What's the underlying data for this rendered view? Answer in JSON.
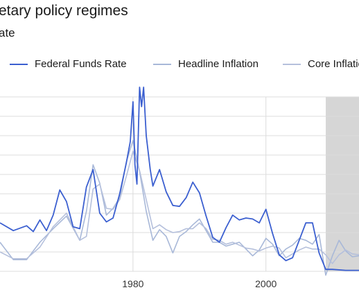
{
  "chart_data": {
    "type": "line",
    "title": "etary policy regimes",
    "subtitle": "ate",
    "xlabel": "",
    "ylabel": "",
    "x_ticks": [
      1980,
      2000
    ],
    "xlim": [
      1960,
      2014
    ],
    "ylim": [
      0,
      18
    ],
    "grid": true,
    "legend_position": "top",
    "shaded_region": {
      "x_start": 2009,
      "x_end": 2014,
      "color": "#d6d6d6"
    },
    "series": [
      {
        "name": "Federal Funds Rate",
        "color": "#3b5fd0",
        "points": [
          [
            1960,
            5.0
          ],
          [
            1962,
            4.2
          ],
          [
            1964,
            4.7
          ],
          [
            1965,
            4.1
          ],
          [
            1966,
            5.3
          ],
          [
            1967,
            4.2
          ],
          [
            1968,
            5.8
          ],
          [
            1969,
            8.4
          ],
          [
            1970,
            7.2
          ],
          [
            1971,
            4.6
          ],
          [
            1972,
            4.4
          ],
          [
            1973,
            8.7
          ],
          [
            1974,
            10.5
          ],
          [
            1975,
            6.0
          ],
          [
            1976,
            5.1
          ],
          [
            1977,
            5.5
          ],
          [
            1978,
            8.0
          ],
          [
            1979,
            11.2
          ],
          [
            1979.6,
            13.4
          ],
          [
            1980,
            17.5
          ],
          [
            1980.3,
            11.0
          ],
          [
            1980.6,
            9.0
          ],
          [
            1981,
            19.0
          ],
          [
            1981.3,
            17.0
          ],
          [
            1981.6,
            19.0
          ],
          [
            1982,
            14.0
          ],
          [
            1982.6,
            10.5
          ],
          [
            1983,
            8.8
          ],
          [
            1984,
            10.5
          ],
          [
            1985,
            8.2
          ],
          [
            1986,
            6.8
          ],
          [
            1987,
            6.7
          ],
          [
            1988,
            7.6
          ],
          [
            1989,
            9.2
          ],
          [
            1990,
            8.1
          ],
          [
            1991,
            5.7
          ],
          [
            1992,
            3.5
          ],
          [
            1993,
            3.0
          ],
          [
            1994,
            4.5
          ],
          [
            1995,
            5.8
          ],
          [
            1996,
            5.3
          ],
          [
            1997,
            5.5
          ],
          [
            1998,
            5.4
          ],
          [
            1999,
            5.0
          ],
          [
            2000,
            6.4
          ],
          [
            2001,
            3.9
          ],
          [
            2002,
            1.7
          ],
          [
            2003,
            1.1
          ],
          [
            2004,
            1.4
          ],
          [
            2005,
            3.2
          ],
          [
            2006,
            5.0
          ],
          [
            2007,
            5.0
          ],
          [
            2008,
            1.9
          ],
          [
            2009,
            0.2
          ],
          [
            2010,
            0.2
          ],
          [
            2012,
            0.1
          ],
          [
            2014,
            0.1
          ]
        ]
      },
      {
        "name": "Headline Inflation",
        "color": "#a8b8d8",
        "points": [
          [
            1960,
            3.0
          ],
          [
            1962,
            1.2
          ],
          [
            1964,
            1.2
          ],
          [
            1966,
            3.0
          ],
          [
            1968,
            4.4
          ],
          [
            1970,
            5.7
          ],
          [
            1972,
            3.2
          ],
          [
            1973,
            6.2
          ],
          [
            1974,
            11.0
          ],
          [
            1975,
            9.1
          ],
          [
            1976,
            5.8
          ],
          [
            1977,
            6.5
          ],
          [
            1978,
            7.6
          ],
          [
            1979,
            11.3
          ],
          [
            1980,
            13.5
          ],
          [
            1981,
            10.3
          ],
          [
            1982,
            6.2
          ],
          [
            1983,
            3.2
          ],
          [
            1984,
            4.3
          ],
          [
            1985,
            3.6
          ],
          [
            1986,
            1.9
          ],
          [
            1987,
            3.6
          ],
          [
            1988,
            4.1
          ],
          [
            1989,
            4.8
          ],
          [
            1990,
            5.4
          ],
          [
            1991,
            4.2
          ],
          [
            1992,
            3.0
          ],
          [
            1993,
            3.0
          ],
          [
            1994,
            2.6
          ],
          [
            1995,
            2.8
          ],
          [
            1996,
            3.0
          ],
          [
            1997,
            2.3
          ],
          [
            1998,
            1.6
          ],
          [
            1999,
            2.2
          ],
          [
            2000,
            3.4
          ],
          [
            2001,
            2.8
          ],
          [
            2002,
            1.6
          ],
          [
            2003,
            2.3
          ],
          [
            2004,
            2.7
          ],
          [
            2005,
            3.4
          ],
          [
            2006,
            3.2
          ],
          [
            2007,
            2.8
          ],
          [
            2008,
            3.8
          ],
          [
            2009,
            -0.4
          ],
          [
            2010,
            1.6
          ],
          [
            2011,
            3.2
          ],
          [
            2012,
            2.1
          ],
          [
            2013,
            1.5
          ],
          [
            2014,
            1.6
          ]
        ]
      },
      {
        "name": "Core Inflation",
        "color": "#b5c0dc",
        "points": [
          [
            1960,
            2.0
          ],
          [
            1962,
            1.3
          ],
          [
            1964,
            1.3
          ],
          [
            1966,
            2.5
          ],
          [
            1968,
            4.6
          ],
          [
            1970,
            6.0
          ],
          [
            1972,
            3.2
          ],
          [
            1973,
            3.6
          ],
          [
            1974,
            8.5
          ],
          [
            1975,
            9.0
          ],
          [
            1976,
            6.5
          ],
          [
            1977,
            6.4
          ],
          [
            1978,
            7.4
          ],
          [
            1979,
            9.8
          ],
          [
            1980,
            12.4
          ],
          [
            1981,
            10.4
          ],
          [
            1982,
            7.4
          ],
          [
            1983,
            4.4
          ],
          [
            1984,
            4.8
          ],
          [
            1985,
            4.3
          ],
          [
            1986,
            4.0
          ],
          [
            1987,
            4.1
          ],
          [
            1988,
            4.4
          ],
          [
            1989,
            4.4
          ],
          [
            1990,
            5.0
          ],
          [
            1991,
            4.4
          ],
          [
            1992,
            3.3
          ],
          [
            1993,
            3.2
          ],
          [
            1994,
            2.8
          ],
          [
            1995,
            3.0
          ],
          [
            1996,
            2.7
          ],
          [
            1997,
            2.4
          ],
          [
            1998,
            2.3
          ],
          [
            1999,
            2.1
          ],
          [
            2000,
            2.4
          ],
          [
            2001,
            2.6
          ],
          [
            2002,
            2.4
          ],
          [
            2003,
            1.4
          ],
          [
            2004,
            1.8
          ],
          [
            2005,
            2.2
          ],
          [
            2006,
            2.5
          ],
          [
            2007,
            2.3
          ],
          [
            2008,
            2.3
          ],
          [
            2009,
            1.7
          ],
          [
            2010,
            0.8
          ],
          [
            2011,
            1.7
          ],
          [
            2012,
            2.2
          ],
          [
            2013,
            1.8
          ],
          [
            2014,
            1.7
          ]
        ]
      }
    ]
  }
}
